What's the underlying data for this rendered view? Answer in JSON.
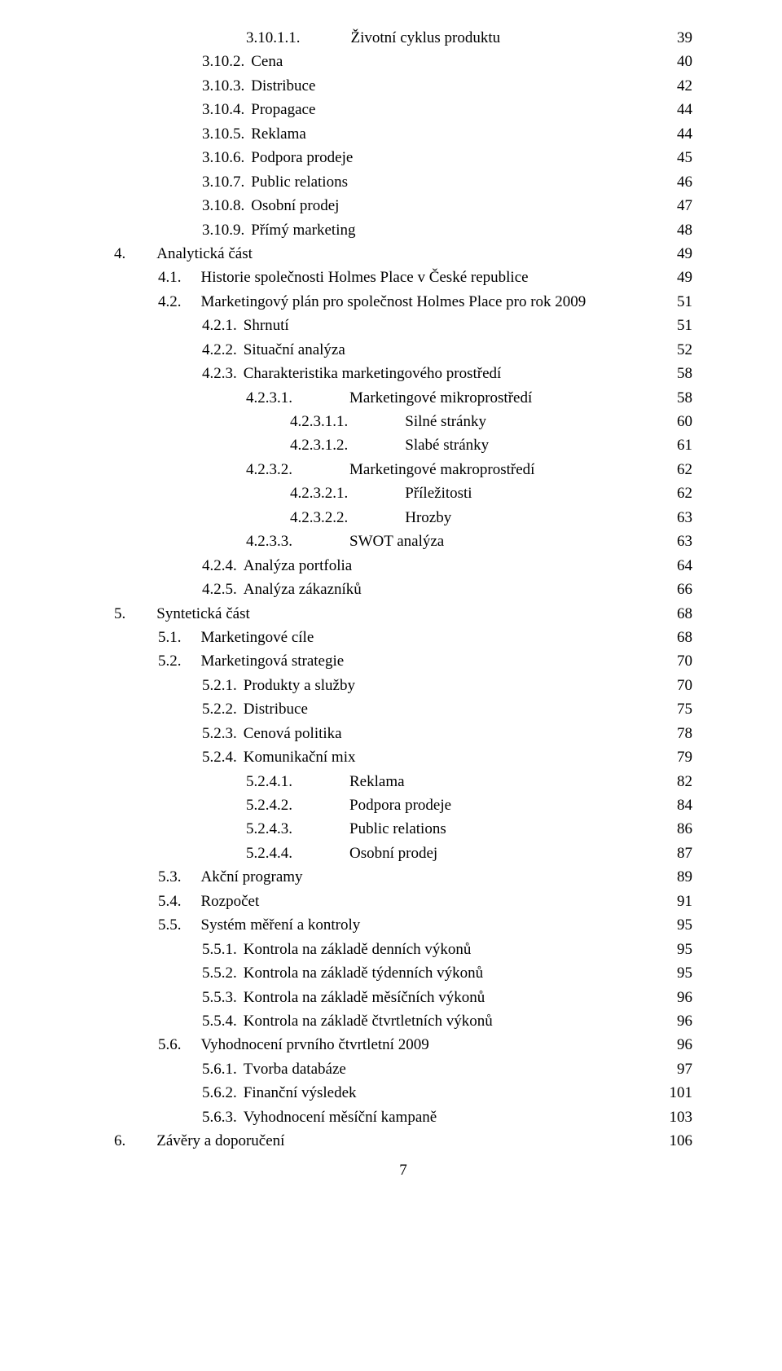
{
  "page_number": "7",
  "entries": [
    {
      "indent": "lvl-4",
      "num": "3.10.1.1.",
      "gap": 62,
      "title": "Životní cyklus produktu",
      "page": "39"
    },
    {
      "indent": "lvl-3",
      "num": "3.10.2.",
      "gap": 8,
      "title": "Cena",
      "page": "40"
    },
    {
      "indent": "lvl-3",
      "num": "3.10.3.",
      "gap": 8,
      "title": "Distribuce",
      "page": "42"
    },
    {
      "indent": "lvl-3",
      "num": "3.10.4.",
      "gap": 8,
      "title": "Propagace",
      "page": "44"
    },
    {
      "indent": "lvl-3",
      "num": "3.10.5.",
      "gap": 8,
      "title": "Reklama",
      "page": "44"
    },
    {
      "indent": "lvl-3",
      "num": "3.10.6.",
      "gap": 8,
      "title": "Podpora prodeje",
      "page": "45"
    },
    {
      "indent": "lvl-3",
      "num": "3.10.7.",
      "gap": 8,
      "title": "Public relations",
      "page": "46"
    },
    {
      "indent": "lvl-3",
      "num": "3.10.8.",
      "gap": 8,
      "title": "Osobní prodej",
      "page": "47"
    },
    {
      "indent": "lvl-3",
      "num": "3.10.9.",
      "gap": 8,
      "title": "Přímý marketing",
      "page": "48"
    },
    {
      "indent": "lvl-0",
      "num": "4.",
      "gap": 38,
      "title": "Analytická část",
      "page": "49"
    },
    {
      "indent": "lvl-2",
      "num": "4.1.",
      "gap": 24,
      "title": "Historie společnosti Holmes Place v České republice",
      "page": "49"
    },
    {
      "indent": "lvl-2",
      "num": "4.2.",
      "gap": 24,
      "title": "Marketingový plán pro společnost Holmes Place pro rok 2009",
      "page": "51"
    },
    {
      "indent": "lvl-3",
      "num": "4.2.1.",
      "gap": 8,
      "title": "Shrnutí",
      "page": "51"
    },
    {
      "indent": "lvl-3",
      "num": "4.2.2.",
      "gap": 8,
      "title": "Situační analýza",
      "page": "52"
    },
    {
      "indent": "lvl-3",
      "num": "4.2.3.",
      "gap": 8,
      "title": "Charakteristika marketingového prostředí",
      "page": "58"
    },
    {
      "indent": "lvl-4",
      "num": "4.2.3.1.",
      "gap": 70,
      "title": "Marketingové mikroprostředí",
      "page": "58"
    },
    {
      "indent": "lvl-5",
      "num": "4.2.3.1.1.",
      "gap": 70,
      "title": "Silné stránky",
      "page": "60"
    },
    {
      "indent": "lvl-5",
      "num": "4.2.3.1.2.",
      "gap": 70,
      "title": "Slabé stránky",
      "page": "61"
    },
    {
      "indent": "lvl-4",
      "num": "4.2.3.2.",
      "gap": 70,
      "title": "Marketingové makroprostředí",
      "page": "62"
    },
    {
      "indent": "lvl-5",
      "num": "4.2.3.2.1.",
      "gap": 70,
      "title": "Příležitosti",
      "page": "62"
    },
    {
      "indent": "lvl-5",
      "num": "4.2.3.2.2.",
      "gap": 70,
      "title": "Hrozby",
      "page": "63"
    },
    {
      "indent": "lvl-4",
      "num": "4.2.3.3.",
      "gap": 70,
      "title": "SWOT analýza",
      "page": "63"
    },
    {
      "indent": "lvl-3",
      "num": "4.2.4.",
      "gap": 8,
      "title": "Analýza portfolia",
      "page": "64"
    },
    {
      "indent": "lvl-3",
      "num": "4.2.5.",
      "gap": 8,
      "title": "Analýza zákazníků",
      "page": "66"
    },
    {
      "indent": "lvl-0",
      "num": "5.",
      "gap": 38,
      "title": "Syntetická část",
      "page": "68"
    },
    {
      "indent": "lvl-2",
      "num": "5.1.",
      "gap": 24,
      "title": "Marketingové cíle",
      "page": "68"
    },
    {
      "indent": "lvl-2",
      "num": "5.2.",
      "gap": 24,
      "title": "Marketingová strategie",
      "page": "70"
    },
    {
      "indent": "lvl-3",
      "num": "5.2.1.",
      "gap": 8,
      "title": "Produkty a služby",
      "page": "70"
    },
    {
      "indent": "lvl-3",
      "num": "5.2.2.",
      "gap": 8,
      "title": "Distribuce",
      "page": "75"
    },
    {
      "indent": "lvl-3",
      "num": "5.2.3.",
      "gap": 8,
      "title": "Cenová politika",
      "page": "78"
    },
    {
      "indent": "lvl-3",
      "num": "5.2.4.",
      "gap": 8,
      "title": "Komunikační mix",
      "page": "79"
    },
    {
      "indent": "lvl-4",
      "num": "5.2.4.1.",
      "gap": 70,
      "title": "Reklama",
      "page": "82"
    },
    {
      "indent": "lvl-4",
      "num": "5.2.4.2.",
      "gap": 70,
      "title": "Podpora prodeje",
      "page": "84"
    },
    {
      "indent": "lvl-4",
      "num": "5.2.4.3.",
      "gap": 70,
      "title": "Public relations",
      "page": "86"
    },
    {
      "indent": "lvl-4",
      "num": "5.2.4.4.",
      "gap": 70,
      "title": "Osobní prodej",
      "page": "87"
    },
    {
      "indent": "lvl-2",
      "num": "5.3.",
      "gap": 24,
      "title": "Akční programy",
      "page": "89"
    },
    {
      "indent": "lvl-2",
      "num": "5.4.",
      "gap": 24,
      "title": "Rozpočet",
      "page": "91"
    },
    {
      "indent": "lvl-2",
      "num": "5.5.",
      "gap": 24,
      "title": "Systém měření a kontroly",
      "page": "95"
    },
    {
      "indent": "lvl-3",
      "num": "5.5.1.",
      "gap": 8,
      "title": "Kontrola na základě denních výkonů",
      "page": "95"
    },
    {
      "indent": "lvl-3",
      "num": "5.5.2.",
      "gap": 8,
      "title": "Kontrola na základě týdenních výkonů",
      "page": "95"
    },
    {
      "indent": "lvl-3",
      "num": "5.5.3.",
      "gap": 8,
      "title": "Kontrola na základě měsíčních výkonů",
      "page": "96"
    },
    {
      "indent": "lvl-3",
      "num": "5.5.4.",
      "gap": 8,
      "title": "Kontrola na základě čtvrtletních výkonů",
      "page": "96"
    },
    {
      "indent": "lvl-2",
      "num": "5.6.",
      "gap": 24,
      "title": "Vyhodnocení prvního čtvrtletní 2009",
      "page": "96"
    },
    {
      "indent": "lvl-3",
      "num": "5.6.1.",
      "gap": 8,
      "title": "Tvorba databáze",
      "page": "97"
    },
    {
      "indent": "lvl-3",
      "num": "5.6.2.",
      "gap": 8,
      "title": "Finanční výsledek",
      "page": "101"
    },
    {
      "indent": "lvl-3",
      "num": "5.6.3.",
      "gap": 8,
      "title": "Vyhodnocení měsíční kampaně",
      "page": "103"
    },
    {
      "indent": "lvl-0",
      "num": "6.",
      "gap": 38,
      "title": "Závěry a doporučení",
      "page": "106"
    }
  ]
}
